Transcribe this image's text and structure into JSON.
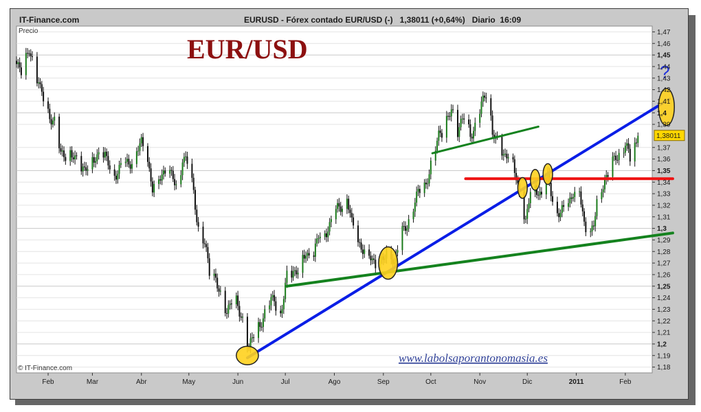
{
  "header": {
    "site": "IT-Finance.com",
    "quote": "EURUSD - Fórex contado EUR/USD (-)   1,38011 (+0,64%)   Diario  16:09"
  },
  "chart_title": "EUR/USD",
  "footer": {
    "copyright": "© IT-Finance.com",
    "url": "www.labolsaporantonomasia.es"
  },
  "chart_data": {
    "type": "candlestick",
    "instrument": "EURUSD",
    "ylabel": "Precio",
    "ylim": [
      1.175,
      1.475
    ],
    "y_ticks": [
      {
        "v": 1.47,
        "label": "1,47"
      },
      {
        "v": 1.46,
        "label": "1,46"
      },
      {
        "v": 1.45,
        "label": "1,45",
        "bold": true
      },
      {
        "v": 1.44,
        "label": "1,44"
      },
      {
        "v": 1.43,
        "label": "1,43"
      },
      {
        "v": 1.42,
        "label": "1,42"
      },
      {
        "v": 1.41,
        "label": "1,41"
      },
      {
        "v": 1.4,
        "label": "1,4",
        "bold": true
      },
      {
        "v": 1.39,
        "label": "1,39"
      },
      {
        "v": 1.37,
        "label": "1,37"
      },
      {
        "v": 1.36,
        "label": "1,36"
      },
      {
        "v": 1.35,
        "label": "1,35",
        "bold": true
      },
      {
        "v": 1.34,
        "label": "1,34"
      },
      {
        "v": 1.33,
        "label": "1,33"
      },
      {
        "v": 1.32,
        "label": "1,32"
      },
      {
        "v": 1.31,
        "label": "1,31"
      },
      {
        "v": 1.3,
        "label": "1,3",
        "bold": true
      },
      {
        "v": 1.29,
        "label": "1,29"
      },
      {
        "v": 1.28,
        "label": "1,28"
      },
      {
        "v": 1.27,
        "label": "1,27"
      },
      {
        "v": 1.26,
        "label": "1,26"
      },
      {
        "v": 1.25,
        "label": "1,25",
        "bold": true
      },
      {
        "v": 1.24,
        "label": "1,24"
      },
      {
        "v": 1.23,
        "label": "1,23"
      },
      {
        "v": 1.22,
        "label": "1,22"
      },
      {
        "v": 1.21,
        "label": "1,21"
      },
      {
        "v": 1.2,
        "label": "1,2",
        "bold": true
      },
      {
        "v": 1.19,
        "label": "1,19"
      },
      {
        "v": 1.18,
        "label": "1,18"
      }
    ],
    "last_price": {
      "value": 1.38011,
      "label": "1,38011",
      "color": "#ffd700"
    },
    "x_axis": {
      "start": "2010-01-12",
      "end": "2011-02-18",
      "months": [
        {
          "label": "Feb",
          "date": "2010-02-01"
        },
        {
          "label": "Mar",
          "date": "2010-03-01"
        },
        {
          "label": "Abr",
          "date": "2010-04-01"
        },
        {
          "label": "May",
          "date": "2010-05-01"
        },
        {
          "label": "Jun",
          "date": "2010-06-01"
        },
        {
          "label": "Jul",
          "date": "2010-07-01"
        },
        {
          "label": "Ago",
          "date": "2010-08-01"
        },
        {
          "label": "Sep",
          "date": "2010-09-01"
        },
        {
          "label": "Oct",
          "date": "2010-10-01"
        },
        {
          "label": "Nov",
          "date": "2010-11-01"
        },
        {
          "label": "Dic",
          "date": "2010-12-01"
        },
        {
          "label": "2011",
          "date": "2011-01-01",
          "bold": true
        },
        {
          "label": "Feb",
          "date": "2011-02-01"
        }
      ]
    },
    "price_path": [
      {
        "date": "2010-01-12",
        "close": 1.445
      },
      {
        "date": "2010-01-16",
        "close": 1.434
      },
      {
        "date": "2010-01-20",
        "close": 1.455
      },
      {
        "date": "2010-01-23",
        "close": 1.443
      },
      {
        "date": "2010-01-27",
        "close": 1.418
      },
      {
        "date": "2010-02-01",
        "close": 1.402
      },
      {
        "date": "2010-02-05",
        "close": 1.392
      },
      {
        "date": "2010-02-09",
        "close": 1.362
      },
      {
        "date": "2010-02-14",
        "close": 1.368
      },
      {
        "date": "2010-02-19",
        "close": 1.356
      },
      {
        "date": "2010-02-24",
        "close": 1.352
      },
      {
        "date": "2010-03-01",
        "close": 1.358
      },
      {
        "date": "2010-03-05",
        "close": 1.365
      },
      {
        "date": "2010-03-09",
        "close": 1.36
      },
      {
        "date": "2010-03-14",
        "close": 1.348
      },
      {
        "date": "2010-03-19",
        "close": 1.352
      },
      {
        "date": "2010-03-24",
        "close": 1.356
      },
      {
        "date": "2010-03-28",
        "close": 1.366
      },
      {
        "date": "2010-04-01",
        "close": 1.372
      },
      {
        "date": "2010-04-05",
        "close": 1.358
      },
      {
        "date": "2010-04-08",
        "close": 1.335
      },
      {
        "date": "2010-04-12",
        "close": 1.344
      },
      {
        "date": "2010-04-16",
        "close": 1.35
      },
      {
        "date": "2010-04-21",
        "close": 1.342
      },
      {
        "date": "2010-04-24",
        "close": 1.335
      },
      {
        "date": "2010-04-27",
        "close": 1.362
      },
      {
        "date": "2010-05-01",
        "close": 1.352
      },
      {
        "date": "2010-05-04",
        "close": 1.332
      },
      {
        "date": "2010-05-07",
        "close": 1.302
      },
      {
        "date": "2010-05-11",
        "close": 1.285
      },
      {
        "date": "2010-05-14",
        "close": 1.262
      },
      {
        "date": "2010-05-18",
        "close": 1.258
      },
      {
        "date": "2010-05-21",
        "close": 1.24
      },
      {
        "date": "2010-05-25",
        "close": 1.228
      },
      {
        "date": "2010-05-29",
        "close": 1.244
      },
      {
        "date": "2010-06-02",
        "close": 1.226
      },
      {
        "date": "2010-06-05",
        "close": 1.218
      },
      {
        "date": "2010-06-08",
        "close": 1.196
      },
      {
        "date": "2010-06-12",
        "close": 1.21
      },
      {
        "date": "2010-06-16",
        "close": 1.222
      },
      {
        "date": "2010-06-20",
        "close": 1.232
      },
      {
        "date": "2010-06-24",
        "close": 1.238
      },
      {
        "date": "2010-06-28",
        "close": 1.226
      },
      {
        "date": "2010-07-02",
        "close": 1.256
      },
      {
        "date": "2010-07-06",
        "close": 1.262
      },
      {
        "date": "2010-07-10",
        "close": 1.268
      },
      {
        "date": "2010-07-14",
        "close": 1.278
      },
      {
        "date": "2010-07-18",
        "close": 1.272
      },
      {
        "date": "2010-07-22",
        "close": 1.292
      },
      {
        "date": "2010-07-26",
        "close": 1.298
      },
      {
        "date": "2010-07-30",
        "close": 1.305
      },
      {
        "date": "2010-08-04",
        "close": 1.318
      },
      {
        "date": "2010-08-09",
        "close": 1.328
      },
      {
        "date": "2010-08-12",
        "close": 1.302
      },
      {
        "date": "2010-08-16",
        "close": 1.288
      },
      {
        "date": "2010-08-20",
        "close": 1.282
      },
      {
        "date": "2010-08-24",
        "close": 1.275
      },
      {
        "date": "2010-08-28",
        "close": 1.266
      },
      {
        "date": "2010-09-01",
        "close": 1.272
      },
      {
        "date": "2010-09-05",
        "close": 1.285
      },
      {
        "date": "2010-09-08",
        "close": 1.27
      },
      {
        "date": "2010-09-12",
        "close": 1.292
      },
      {
        "date": "2010-09-16",
        "close": 1.306
      },
      {
        "date": "2010-09-20",
        "close": 1.318
      },
      {
        "date": "2010-09-24",
        "close": 1.332
      },
      {
        "date": "2010-09-28",
        "close": 1.34
      },
      {
        "date": "2010-10-02",
        "close": 1.358
      },
      {
        "date": "2010-10-06",
        "close": 1.382
      },
      {
        "date": "2010-10-10",
        "close": 1.388
      },
      {
        "date": "2010-10-14",
        "close": 1.402
      },
      {
        "date": "2010-10-18",
        "close": 1.386
      },
      {
        "date": "2010-10-22",
        "close": 1.396
      },
      {
        "date": "2010-10-26",
        "close": 1.382
      },
      {
        "date": "2010-10-30",
        "close": 1.392
      },
      {
        "date": "2010-11-03",
        "close": 1.408
      },
      {
        "date": "2010-11-06",
        "close": 1.422
      },
      {
        "date": "2010-11-09",
        "close": 1.386
      },
      {
        "date": "2010-11-12",
        "close": 1.372
      },
      {
        "date": "2010-11-16",
        "close": 1.362
      },
      {
        "date": "2010-11-20",
        "close": 1.37
      },
      {
        "date": "2010-11-24",
        "close": 1.342
      },
      {
        "date": "2010-11-27",
        "close": 1.322
      },
      {
        "date": "2010-11-30",
        "close": 1.305
      },
      {
        "date": "2010-12-03",
        "close": 1.332
      },
      {
        "date": "2010-12-06",
        "close": 1.338
      },
      {
        "date": "2010-12-10",
        "close": 1.328
      },
      {
        "date": "2010-12-14",
        "close": 1.342
      },
      {
        "date": "2010-12-18",
        "close": 1.322
      },
      {
        "date": "2010-12-22",
        "close": 1.312
      },
      {
        "date": "2010-12-26",
        "close": 1.316
      },
      {
        "date": "2010-12-30",
        "close": 1.334
      },
      {
        "date": "2011-01-03",
        "close": 1.332
      },
      {
        "date": "2011-01-06",
        "close": 1.302
      },
      {
        "date": "2011-01-09",
        "close": 1.292
      },
      {
        "date": "2011-01-12",
        "close": 1.302
      },
      {
        "date": "2011-01-15",
        "close": 1.332
      },
      {
        "date": "2011-01-19",
        "close": 1.342
      },
      {
        "date": "2011-01-22",
        "close": 1.348
      },
      {
        "date": "2011-01-26",
        "close": 1.362
      },
      {
        "date": "2011-01-29",
        "close": 1.368
      },
      {
        "date": "2011-02-01",
        "close": 1.372
      },
      {
        "date": "2011-02-04",
        "close": 1.358
      },
      {
        "date": "2011-02-07",
        "close": 1.372
      },
      {
        "date": "2011-02-09",
        "close": 1.38011
      }
    ],
    "annotations": {
      "trendlines": [
        {
          "name": "blue-support-trendline",
          "color": "#0a1ee6",
          "width": 4,
          "from": {
            "date": "2010-06-07",
            "price": 1.188
          },
          "to": {
            "date": "2011-03-01",
            "price": 1.412
          }
        },
        {
          "name": "green-lower-trendline",
          "color": "#14821e",
          "width": 4,
          "from": {
            "date": "2010-07-02",
            "price": 1.25
          },
          "to": {
            "date": "2011-03-03",
            "price": 1.296
          }
        },
        {
          "name": "green-upper-trendline",
          "color": "#14821e",
          "width": 3,
          "from": {
            "date": "2010-10-02",
            "price": 1.365
          },
          "to": {
            "date": "2010-12-08",
            "price": 1.388
          }
        },
        {
          "name": "red-resistance-line",
          "color": "#ee1111",
          "width": 4,
          "from": {
            "date": "2010-10-23",
            "price": 1.343
          },
          "to": {
            "date": "2011-03-03",
            "price": 1.343
          }
        }
      ],
      "highlights": [
        {
          "name": "highlight-june-low",
          "date": "2010-06-07",
          "price": 1.19,
          "rx_days": 7,
          "ry": 0.008
        },
        {
          "name": "highlight-sep-cross",
          "date": "2010-09-04",
          "price": 1.27,
          "rx_days": 6,
          "ry": 0.014
        },
        {
          "name": "highlight-dec-1",
          "date": "2010-11-28",
          "price": 1.335,
          "rx_days": 3,
          "ry": 0.009
        },
        {
          "name": "highlight-dec-2",
          "date": "2010-12-06",
          "price": 1.342,
          "rx_days": 3,
          "ry": 0.009
        },
        {
          "name": "highlight-dec-3",
          "date": "2010-12-14",
          "price": 1.347,
          "rx_days": 3,
          "ry": 0.009
        },
        {
          "name": "highlight-future",
          "date": "2011-02-27",
          "price": 1.405,
          "rx_days": 5,
          "ry": 0.016
        }
      ],
      "question_mark": {
        "text": "?",
        "date": "2011-02-26",
        "price": 1.43,
        "color": "#2233dd"
      }
    },
    "colors": {
      "up": "#1a7a1a",
      "down": "#111111",
      "highlight": "#ffd21e",
      "plot_bg": "#ffffff",
      "frame": "#c9c9c9"
    }
  }
}
